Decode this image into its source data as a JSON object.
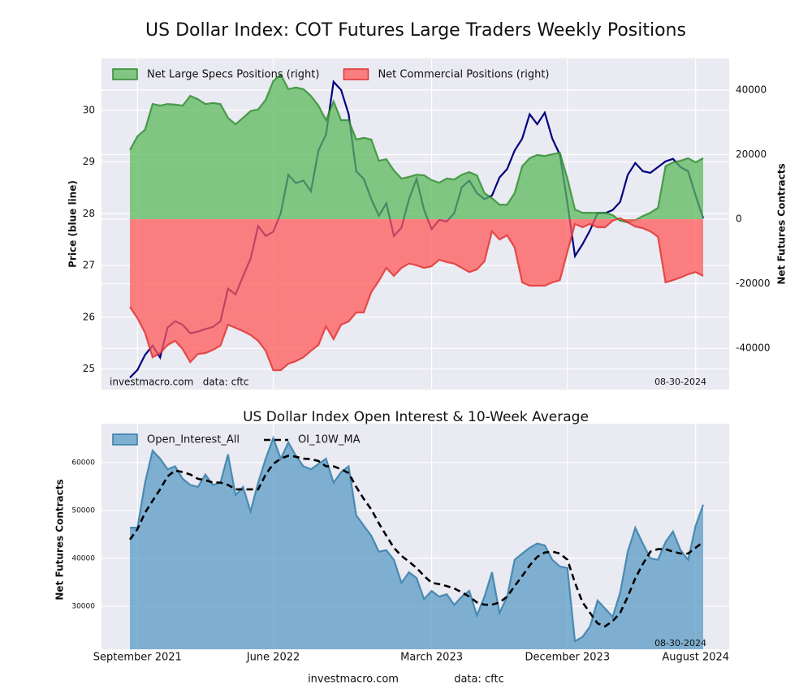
{
  "chart_data": [
    {
      "type": "line",
      "title": "US Dollar Index: COT Futures Large Traders Weekly Positions",
      "ylabel": "Price (blue line)",
      "y2label": "Net Futures Contracts",
      "ylim": [
        24.6,
        31.0
      ],
      "yticks": [
        25,
        26,
        27,
        28,
        29,
        30
      ],
      "y2lim": [
        -52800,
        49800
      ],
      "y2ticks": [
        -40000,
        -20000,
        0,
        20000,
        40000
      ],
      "grid": true,
      "legend": "upper left",
      "annotations": [
        "investmacro.com   data: cftc",
        "08-30-2024"
      ],
      "series": [
        {
          "color": "#000080",
          "style": "line",
          "axis": "y",
          "values": [
            24.83,
            24.98,
            25.27,
            25.45,
            25.22,
            25.8,
            25.92,
            25.85,
            25.69,
            25.72,
            25.77,
            25.81,
            25.92,
            26.55,
            26.44,
            26.79,
            27.13,
            27.76,
            27.57,
            27.65,
            28.01,
            28.75,
            28.59,
            28.64,
            28.43,
            29.22,
            29.53,
            30.55,
            30.39,
            29.92,
            28.82,
            28.67,
            28.28,
            27.96,
            28.2,
            27.57,
            27.73,
            28.28,
            28.67,
            28.07,
            27.7,
            27.88,
            27.85,
            28.01,
            28.51,
            28.64,
            28.4,
            28.28,
            28.35,
            28.7,
            28.86,
            29.22,
            29.45,
            29.92,
            29.73,
            29.95,
            29.45,
            29.14,
            28.2,
            27.18,
            27.41,
            27.68,
            28.01,
            28.01,
            28.07,
            28.23,
            28.75,
            28.98,
            28.82,
            28.79,
            28.9,
            29.01,
            29.06,
            28.9,
            28.82,
            28.35,
            27.91
          ]
        },
        {
          "name": "Net Large Specs Positions (right)",
          "color": "#2e8b2e",
          "fill": "#5cb85c",
          "style": "area",
          "axis": "y2",
          "values": [
            21400,
            25700,
            27700,
            35700,
            35200,
            35700,
            35500,
            35200,
            38200,
            37200,
            35700,
            36000,
            35700,
            31400,
            29400,
            31400,
            33500,
            34000,
            37000,
            42800,
            44800,
            40300,
            40800,
            40300,
            38200,
            35200,
            30700,
            36500,
            30700,
            30700,
            24700,
            25200,
            24700,
            18100,
            18600,
            15100,
            12600,
            13100,
            13800,
            13600,
            12100,
            11300,
            12600,
            12300,
            13800,
            14600,
            13600,
            8100,
            6500,
            4500,
            4500,
            8100,
            16400,
            18900,
            19900,
            19600,
            20100,
            20600,
            12600,
            3000,
            2000,
            2000,
            2000,
            2000,
            1300,
            -500,
            -1000,
            -300,
            1000,
            2000,
            3500,
            16400,
            17600,
            18100,
            18900,
            17600,
            18900
          ]
        },
        {
          "name": "Net Commercial Positions (right)",
          "color": "#e03030",
          "fill": "#ff5a5a",
          "style": "area",
          "axis": "y2",
          "values": [
            -27200,
            -30700,
            -35200,
            -42800,
            -41500,
            -39000,
            -37700,
            -40300,
            -44300,
            -41800,
            -41500,
            -40500,
            -39200,
            -32700,
            -33700,
            -34700,
            -35900,
            -37700,
            -40800,
            -46800,
            -46800,
            -44800,
            -44000,
            -42800,
            -40800,
            -39000,
            -33200,
            -37200,
            -32700,
            -31700,
            -28900,
            -28900,
            -22600,
            -19100,
            -15100,
            -17600,
            -15100,
            -13800,
            -14300,
            -15100,
            -14600,
            -12600,
            -13300,
            -13800,
            -15100,
            -16400,
            -15600,
            -13100,
            -3800,
            -6300,
            -5000,
            -8800,
            -19600,
            -20600,
            -20600,
            -20600,
            -19600,
            -18900,
            -10100,
            -1500,
            -2500,
            -1500,
            -2500,
            -2500,
            -500,
            300,
            -1000,
            -2300,
            -2800,
            -3800,
            -5500,
            -19600,
            -18900,
            -18100,
            -17100,
            -16400,
            -17600
          ]
        }
      ]
    },
    {
      "type": "line",
      "title": "US Dollar Index Open Interest & 10-Week Average",
      "ylabel": "Net Futures Contracts",
      "ylim": [
        21000,
        68100
      ],
      "yticks": [
        30000,
        40000,
        50000,
        60000
      ],
      "grid": true,
      "legend": "upper left",
      "annotations": [
        "08-30-2024"
      ],
      "categories": [
        null,
        "September 2021",
        null,
        null,
        null,
        null,
        null,
        null,
        null,
        null,
        null,
        null,
        null,
        null,
        null,
        null,
        null,
        null,
        null,
        "June 2022",
        null,
        null,
        null,
        null,
        null,
        null,
        null,
        null,
        null,
        null,
        null,
        null,
        null,
        null,
        null,
        null,
        null,
        null,
        null,
        null,
        "March 2023",
        null,
        null,
        null,
        null,
        null,
        null,
        null,
        null,
        null,
        null,
        null,
        null,
        null,
        null,
        null,
        null,
        null,
        "December 2023",
        null,
        null,
        null,
        null,
        null,
        null,
        null,
        null,
        null,
        null,
        null,
        null,
        null,
        null,
        null,
        null,
        "August 2024",
        null
      ],
      "series": [
        {
          "name": "Open_Interest_All",
          "color": "#2f7ba8",
          "fill": "#5b9bc4",
          "style": "area",
          "values": [
            46400,
            46400,
            55800,
            62500,
            60800,
            58600,
            59200,
            56600,
            55300,
            54900,
            57500,
            55300,
            55800,
            61700,
            53200,
            54900,
            49800,
            55800,
            60800,
            65100,
            60800,
            64200,
            61400,
            59200,
            58600,
            59700,
            60800,
            55800,
            58000,
            59200,
            49000,
            46800,
            44700,
            41400,
            41700,
            39700,
            34900,
            37100,
            35900,
            31500,
            33200,
            32000,
            32500,
            30300,
            32000,
            33200,
            28100,
            32000,
            37100,
            28600,
            32000,
            39700,
            41000,
            42200,
            43100,
            42700,
            39700,
            38300,
            38000,
            22700,
            23600,
            25800,
            31200,
            29500,
            27800,
            32900,
            41400,
            46400,
            43100,
            40000,
            39700,
            43400,
            45600,
            41700,
            39700,
            46800,
            51200
          ]
        },
        {
          "name": "OI_10W_MA",
          "color": "#000000",
          "style": "line",
          "dash": true,
          "values": [
            43900,
            46100,
            49500,
            52000,
            54400,
            57100,
            58300,
            58000,
            57500,
            56600,
            56300,
            55800,
            55800,
            55300,
            54400,
            54400,
            54400,
            54400,
            57500,
            59700,
            60800,
            61400,
            61200,
            60800,
            60700,
            60300,
            59200,
            59200,
            58600,
            57800,
            54900,
            52400,
            50200,
            47300,
            44700,
            42200,
            40500,
            39300,
            38000,
            36300,
            34900,
            34600,
            34200,
            33700,
            32900,
            32000,
            30800,
            30300,
            30300,
            30800,
            32000,
            34200,
            36300,
            38500,
            40300,
            41200,
            41400,
            41000,
            39700,
            34900,
            30800,
            28600,
            26400,
            25800,
            26900,
            28600,
            32000,
            35800,
            38800,
            41400,
            41900,
            41900,
            41400,
            41000,
            41000,
            42200,
            43400
          ]
        }
      ]
    }
  ],
  "footer": [
    "investmacro.com",
    "data: cftc"
  ]
}
